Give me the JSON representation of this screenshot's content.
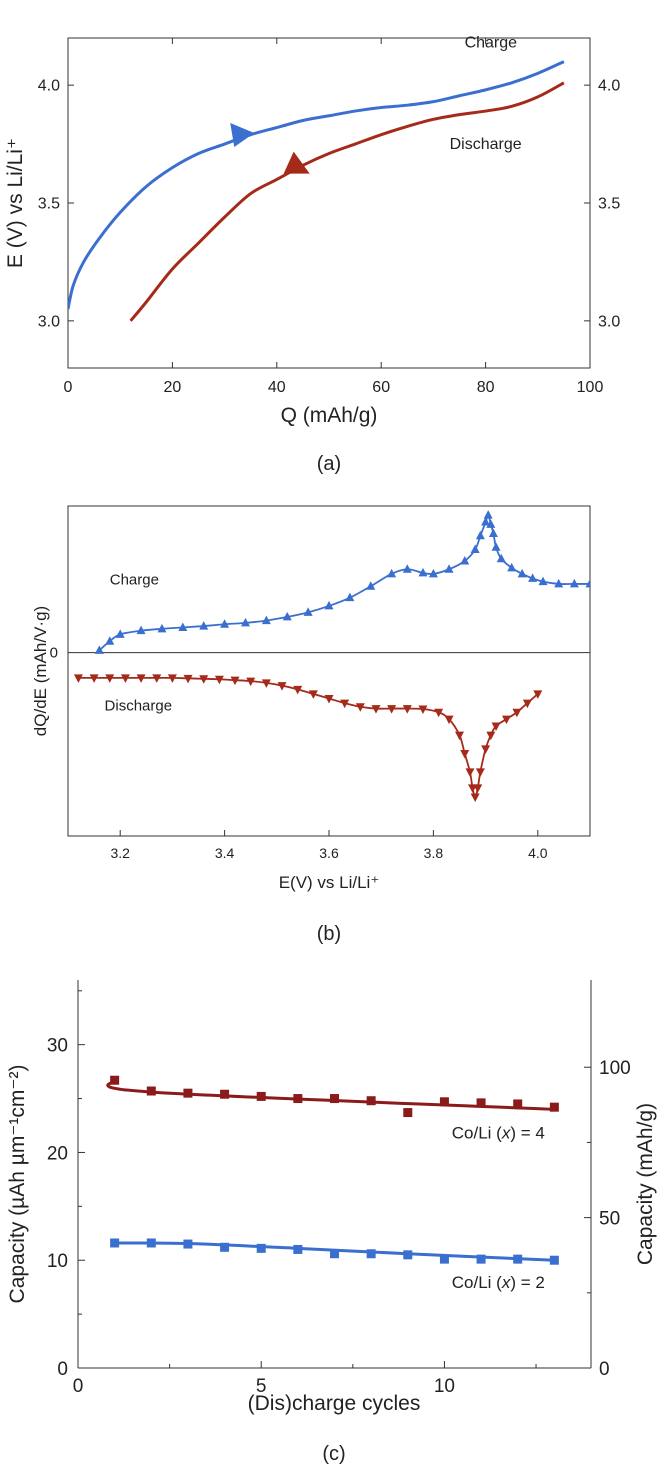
{
  "colors": {
    "charge": "#3a6fd0",
    "discharge": "#a52a1a",
    "axis": "#333333"
  },
  "chart_data": [
    {
      "type": "line",
      "caption": "(a)",
      "xlabel": "Q (mAh/g)",
      "ylabel": "E (V) vs Li/Li⁺",
      "xlim": [
        0,
        100
      ],
      "ylim": [
        2.8,
        4.2
      ],
      "xticks": [
        0,
        20,
        40,
        60,
        80,
        100
      ],
      "yticks": [
        3.0,
        3.5,
        4.0
      ],
      "series": [
        {
          "name": "Charge",
          "color": "#3a6fd0",
          "x": [
            0,
            1,
            3,
            6,
            10,
            15,
            20,
            25,
            30,
            35,
            40,
            45,
            50,
            55,
            60,
            65,
            70,
            75,
            80,
            85,
            90,
            95
          ],
          "y": [
            3.05,
            3.15,
            3.25,
            3.35,
            3.46,
            3.57,
            3.65,
            3.71,
            3.75,
            3.79,
            3.82,
            3.85,
            3.87,
            3.89,
            3.905,
            3.915,
            3.93,
            3.955,
            3.98,
            4.01,
            4.05,
            4.1
          ],
          "arrow_at": [
            33,
            3.78
          ],
          "arrow": "right"
        },
        {
          "name": "Discharge",
          "color": "#a52a1a",
          "x": [
            12,
            15,
            20,
            25,
            30,
            35,
            40,
            45,
            50,
            55,
            60,
            65,
            70,
            75,
            80,
            85,
            90,
            95
          ],
          "y": [
            3.0,
            3.08,
            3.22,
            3.33,
            3.44,
            3.54,
            3.6,
            3.66,
            3.71,
            3.75,
            3.79,
            3.825,
            3.855,
            3.875,
            3.89,
            3.91,
            3.95,
            4.01
          ],
          "arrow_at": [
            44,
            3.65
          ],
          "arrow": "up"
        }
      ],
      "labels": [
        {
          "text": "Charge",
          "x": 81,
          "y": 4.18
        },
        {
          "text": "Discharge",
          "x": 80,
          "y": 3.75
        }
      ]
    },
    {
      "type": "scatter",
      "caption": "(b)",
      "xlabel": "E(V) vs Li/Li⁺",
      "ylabel": "dQ/dE (mAh/V·g)",
      "xlim": [
        3.1,
        4.1
      ],
      "ylim": [
        -4.0,
        3.2
      ],
      "xticks": [
        3.2,
        3.4,
        3.6,
        3.8,
        4.0
      ],
      "yticks": [
        0
      ],
      "zero_line": true,
      "series": [
        {
          "name": "Charge",
          "color": "#3a6fd0",
          "marker": "triangle-up",
          "x": [
            3.16,
            3.18,
            3.2,
            3.24,
            3.28,
            3.32,
            3.36,
            3.4,
            3.44,
            3.48,
            3.52,
            3.56,
            3.6,
            3.64,
            3.68,
            3.72,
            3.75,
            3.78,
            3.8,
            3.83,
            3.86,
            3.88,
            3.89,
            3.9,
            3.905,
            3.91,
            3.915,
            3.92,
            3.93,
            3.95,
            3.97,
            3.99,
            4.01,
            4.04,
            4.07,
            4.1
          ],
          "y": [
            0.05,
            0.25,
            0.4,
            0.48,
            0.52,
            0.55,
            0.58,
            0.62,
            0.65,
            0.7,
            0.78,
            0.88,
            1.02,
            1.2,
            1.45,
            1.72,
            1.82,
            1.74,
            1.72,
            1.82,
            2.0,
            2.25,
            2.55,
            2.85,
            3.0,
            2.8,
            2.6,
            2.3,
            2.05,
            1.85,
            1.72,
            1.62,
            1.55,
            1.5,
            1.5,
            1.5
          ]
        },
        {
          "name": "Discharge",
          "color": "#a52a1a",
          "marker": "triangle-down",
          "x": [
            3.12,
            3.15,
            3.18,
            3.21,
            3.24,
            3.27,
            3.3,
            3.33,
            3.36,
            3.39,
            3.42,
            3.45,
            3.48,
            3.51,
            3.54,
            3.57,
            3.6,
            3.63,
            3.66,
            3.69,
            3.72,
            3.75,
            3.78,
            3.81,
            3.83,
            3.85,
            3.86,
            3.87,
            3.875,
            3.88,
            3.885,
            3.89,
            3.9,
            3.91,
            3.92,
            3.94,
            3.96,
            3.98,
            4.0
          ],
          "y": [
            -0.55,
            -0.55,
            -0.55,
            -0.55,
            -0.55,
            -0.55,
            -0.55,
            -0.56,
            -0.57,
            -0.58,
            -0.6,
            -0.62,
            -0.66,
            -0.72,
            -0.8,
            -0.9,
            -1.0,
            -1.1,
            -1.18,
            -1.22,
            -1.22,
            -1.22,
            -1.23,
            -1.3,
            -1.45,
            -1.8,
            -2.2,
            -2.6,
            -2.95,
            -3.15,
            -2.95,
            -2.6,
            -2.1,
            -1.8,
            -1.6,
            -1.45,
            -1.3,
            -1.1,
            -0.9
          ]
        }
      ],
      "labels": [
        {
          "text": "Charge",
          "x": 3.18,
          "y": 1.6
        },
        {
          "text": "Discharge",
          "x": 3.17,
          "y": -1.15
        }
      ]
    },
    {
      "type": "line",
      "caption": "(c)",
      "xlabel": "(Dis)charge cycles",
      "ylabel": "Capacity (µAh µm⁻¹cm⁻²)",
      "ylabel_right": "Capacity (mAh/g)",
      "xlim": [
        0,
        14
      ],
      "ylim": [
        0,
        36
      ],
      "ylim_right": [
        0,
        129
      ],
      "xticks": [
        0,
        5,
        10
      ],
      "yticks": [
        0,
        10,
        20,
        30
      ],
      "yticks_right": [
        0,
        50,
        100
      ],
      "series": [
        {
          "name": "Co/Li (x) = 4",
          "color": "#8b1a1a",
          "marker": "square",
          "x": [
            1,
            2,
            3,
            4,
            5,
            6,
            7,
            8,
            9,
            10,
            11,
            12,
            13
          ],
          "y": [
            26.7,
            25.7,
            25.5,
            25.4,
            25.2,
            25.0,
            25.0,
            24.8,
            23.7,
            24.7,
            24.6,
            24.5,
            24.2
          ],
          "fit": [
            [
              1,
              26.7
            ],
            [
              2,
              25.6
            ],
            [
              13,
              24.0
            ]
          ]
        },
        {
          "name": "Co/Li (x) = 2",
          "color": "#3a6fd0",
          "marker": "square",
          "x": [
            1,
            2,
            3,
            4,
            5,
            6,
            7,
            8,
            9,
            10,
            11,
            12,
            13
          ],
          "y": [
            11.6,
            11.6,
            11.5,
            11.2,
            11.1,
            11.0,
            10.6,
            10.6,
            10.5,
            10.1,
            10.1,
            10.1,
            10.0
          ],
          "fit": [
            [
              1,
              11.6
            ],
            [
              3,
              11.55
            ],
            [
              6,
              11.1
            ],
            [
              9,
              10.6
            ],
            [
              13,
              10.0
            ]
          ]
        }
      ],
      "labels": [
        {
          "text": "Co/Li (",
          "italic": "x",
          "rest": ") = 4",
          "x": 10.2,
          "y": 21.3
        },
        {
          "text": "Co/Li (",
          "italic": "x",
          "rest": ") = 2",
          "x": 10.2,
          "y": 7.4
        }
      ]
    }
  ]
}
